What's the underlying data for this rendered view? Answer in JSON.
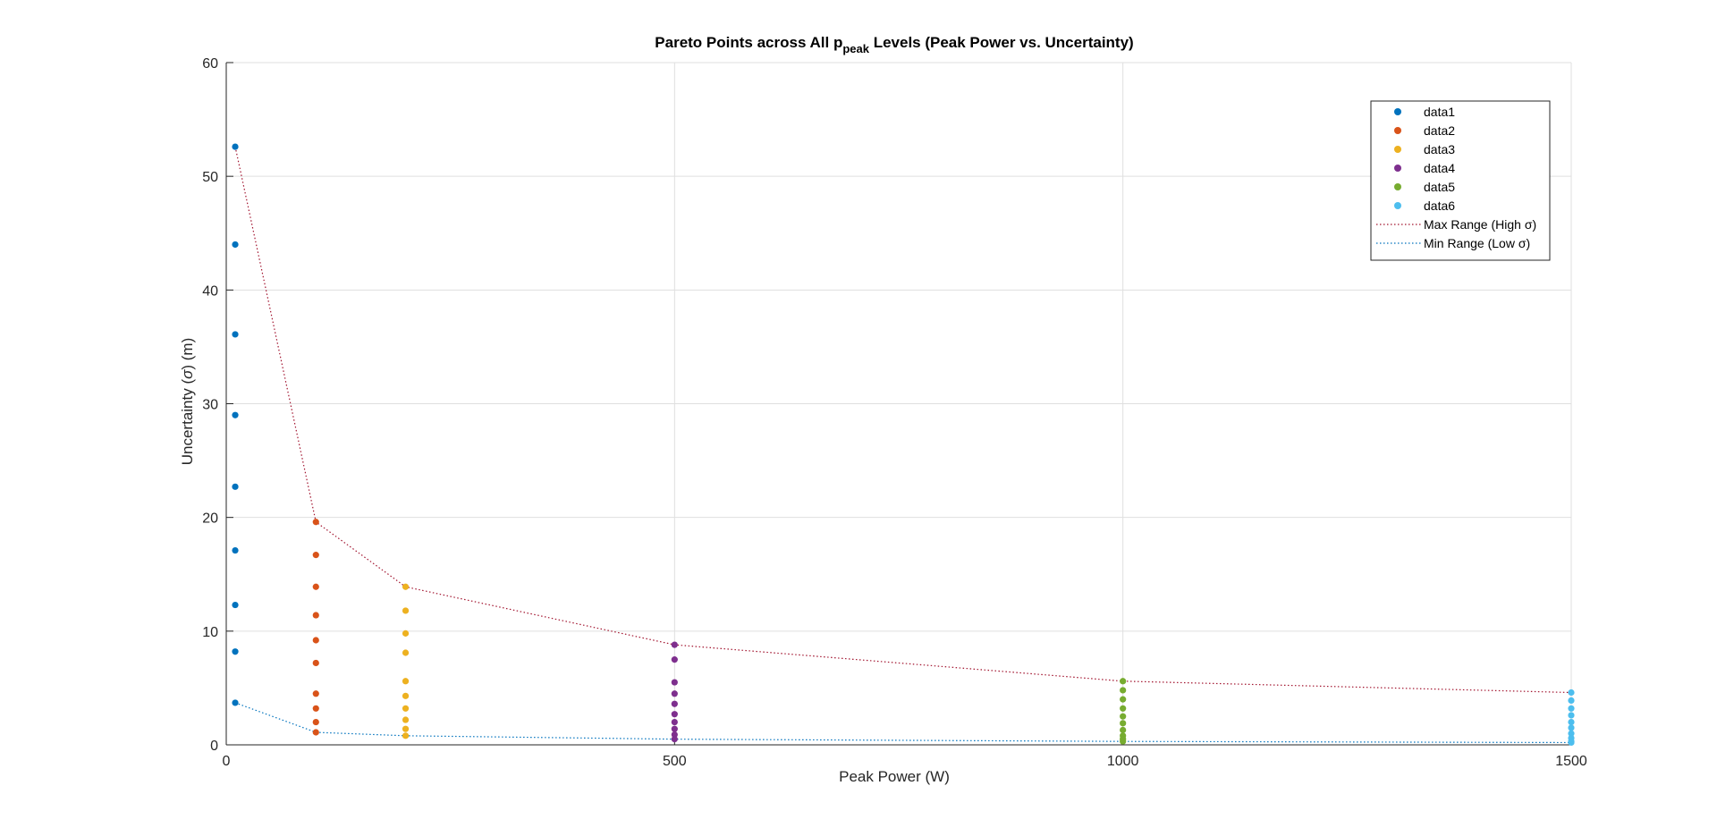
{
  "chart_data": {
    "type": "scatter",
    "title_prefix": "Pareto Points across All p",
    "title_sub": "peak",
    "title_suffix": " Levels (Peak Power vs. Uncertainty)",
    "xlabel": "Peak Power (W)",
    "ylabel_prefix": "Uncertainty (",
    "ylabel_sigma": "σ",
    "ylabel_suffix": ") (m)",
    "xlim": [
      0,
      1500
    ],
    "ylim": [
      0,
      60
    ],
    "xticks": [
      0,
      500,
      1000,
      1500
    ],
    "yticks": [
      0,
      10,
      20,
      30,
      40,
      50,
      60
    ],
    "grid": true,
    "legend_position": "top-right",
    "series": [
      {
        "name": "data1",
        "kind": "points",
        "color": "#0072BD",
        "x": 10,
        "y": [
          52.6,
          44.0,
          36.1,
          29.0,
          22.7,
          17.1,
          12.3,
          8.2,
          3.7
        ]
      },
      {
        "name": "data2",
        "kind": "points",
        "color": "#D95319",
        "x": 100,
        "y": [
          19.6,
          16.7,
          13.9,
          11.4,
          9.2,
          7.2,
          4.5,
          3.2,
          2.0,
          1.1
        ]
      },
      {
        "name": "data3",
        "kind": "points",
        "color": "#EDB120",
        "x": 200,
        "y": [
          13.9,
          11.8,
          9.8,
          8.1,
          5.6,
          4.3,
          3.2,
          2.2,
          1.4,
          0.8
        ]
      },
      {
        "name": "data4",
        "kind": "points",
        "color": "#7E2F8E",
        "x": 500,
        "y": [
          8.8,
          7.5,
          5.5,
          4.5,
          3.6,
          2.7,
          2.0,
          1.4,
          0.9,
          0.5
        ]
      },
      {
        "name": "data5",
        "kind": "points",
        "color": "#77AC30",
        "x": 1000,
        "y": [
          5.6,
          4.8,
          4.0,
          3.2,
          2.5,
          1.9,
          1.3,
          0.8,
          0.5,
          0.3
        ]
      },
      {
        "name": "data6",
        "kind": "points",
        "color": "#4DBEEE",
        "x": 1500,
        "y": [
          4.6,
          3.9,
          3.2,
          2.6,
          2.0,
          1.5,
          1.0,
          0.6,
          0.3,
          0.2
        ]
      },
      {
        "name": "Max Range (High σ)",
        "kind": "line",
        "color": "#A2142F",
        "x": [
          10,
          100,
          200,
          500,
          1000,
          1500
        ],
        "y": [
          52.6,
          19.6,
          13.9,
          8.8,
          5.6,
          4.6
        ]
      },
      {
        "name": "Min Range (Low σ)",
        "kind": "line",
        "color": "#0072BD",
        "x": [
          10,
          100,
          200,
          500,
          1000,
          1500
        ],
        "y": [
          3.7,
          1.1,
          0.8,
          0.5,
          0.3,
          0.2
        ]
      }
    ]
  }
}
